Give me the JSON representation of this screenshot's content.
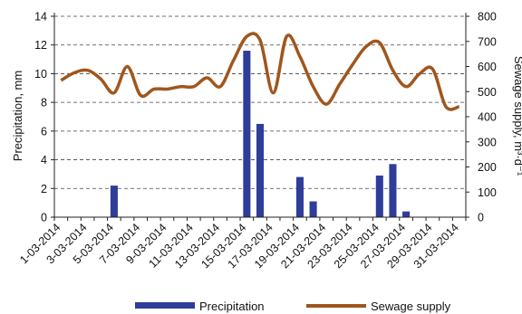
{
  "chart_data": {
    "type": "bar+line",
    "x": [
      "1-03-2014",
      "2-03-2014",
      "3-03-2014",
      "4-03-2014",
      "5-03-2014",
      "6-03-2014",
      "7-03-2014",
      "8-03-2014",
      "9-03-2014",
      "10-03-2014",
      "11-03-2014",
      "12-03-2014",
      "13-03-2014",
      "14-03-2014",
      "15-03-2014",
      "16-03-2014",
      "17-03-2014",
      "18-03-2014",
      "19-03-2014",
      "20-03-2014",
      "21-03-2014",
      "22-03-2014",
      "23-03-2014",
      "24-03-2014",
      "25-03-2014",
      "26-03-2014",
      "27-03-2014",
      "28-03-2014",
      "29-03-2014",
      "30-03-2014",
      "31-03-2014"
    ],
    "x_tick_labels": [
      "1-03-2014",
      "3-03-2014",
      "5-03-2014",
      "7-03-2014",
      "9-03-2014",
      "11-03-2014",
      "13-03-2014",
      "15-03-2014",
      "17-03-2014",
      "19-03-2014",
      "21-03-2014",
      "23-03-2014",
      "25-03-2014",
      "27-03-2014",
      "29-03-2014",
      "31-03-2014"
    ],
    "series": [
      {
        "name": "Precipitation",
        "type": "bar",
        "axis": "left",
        "color": "#2e3c9a",
        "values": [
          0,
          0,
          0,
          0,
          2.2,
          0,
          0,
          0,
          0,
          0,
          0,
          0,
          0,
          0,
          11.6,
          6.5,
          0,
          0,
          2.8,
          1.1,
          0,
          0,
          0,
          0,
          2.9,
          3.7,
          0.4,
          0,
          0,
          0,
          0
        ]
      },
      {
        "name": "Sewage supply",
        "type": "line",
        "axis": "right",
        "color": "#a0561d",
        "values": [
          545,
          575,
          585,
          550,
          495,
          600,
          485,
          510,
          510,
          520,
          520,
          555,
          520,
          625,
          720,
          705,
          495,
          720,
          640,
          520,
          450,
          530,
          610,
          680,
          695,
          585,
          520,
          570,
          590,
          440,
          440
        ]
      }
    ],
    "y_left": {
      "label": "Precipitation, mm",
      "lim": [
        0,
        14
      ],
      "ticks": [
        0,
        2,
        4,
        6,
        8,
        10,
        12,
        14
      ]
    },
    "y_right": {
      "label": "Sewage supply, m³·d⁻¹",
      "lim": [
        0,
        800
      ],
      "ticks": [
        0,
        100,
        200,
        300,
        400,
        500,
        600,
        700,
        800
      ]
    },
    "grid": "horizontal-dashed",
    "legend": {
      "position": "bottom",
      "entries": [
        "Precipitation",
        "Sewage supply"
      ]
    }
  }
}
